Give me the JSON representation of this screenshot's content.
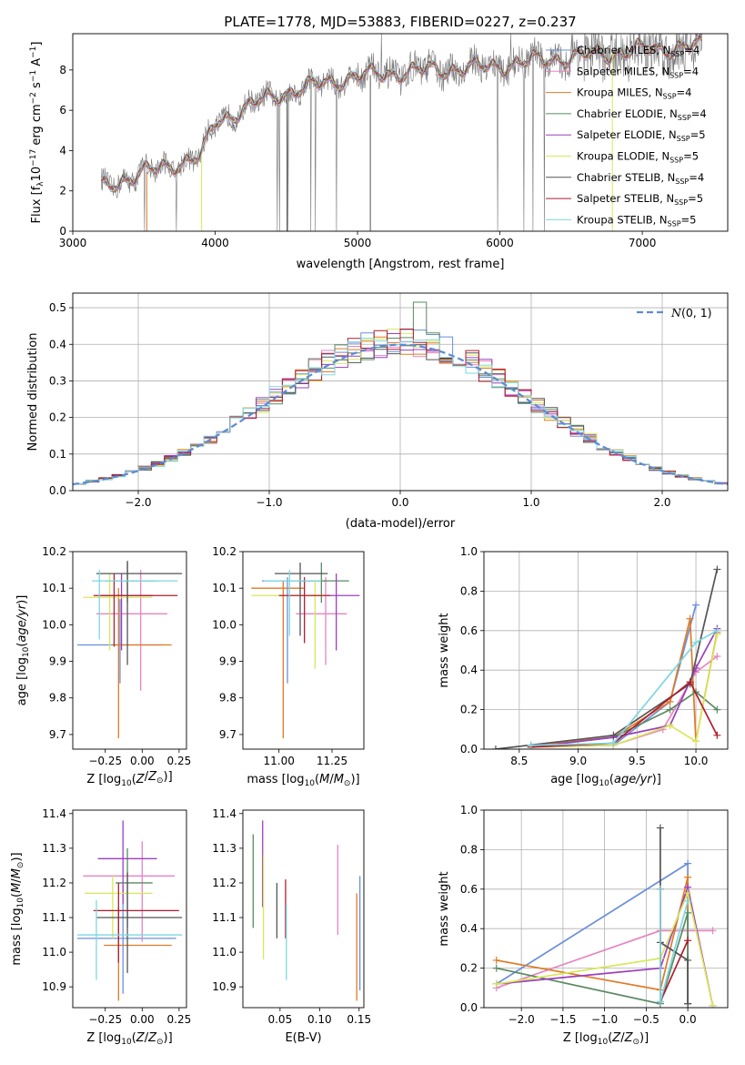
{
  "title": "PLATE=1778, MJD=53883, FIBERID=0227, z=0.237",
  "colors": {
    "Chabrier MILES": "#6a8fdc",
    "Salpeter MILES": "#e585c0",
    "Kroupa MILES": "#e07a26",
    "Chabrier ELODIE": "#5a8a62",
    "Salpeter ELODIE": "#9b3fbd",
    "Kroupa ELODIE": "#d8e85a",
    "Chabrier STELIB": "#555555",
    "Salpeter STELIB": "#b01c2e",
    "Kroupa STELIB": "#7fd6e0"
  },
  "chart_data": [
    {
      "id": "spectrum",
      "type": "line",
      "xlabel": "wavelength [Angstrom, rest frame]",
      "ylabel": "Flux [f",
      "xlim": [
        3000,
        7600
      ],
      "ylim": [
        0,
        9.8
      ],
      "xticks": [
        3000,
        4000,
        5000,
        6000,
        7000
      ],
      "yticks": [
        0,
        2,
        4,
        6,
        8
      ],
      "legend": "upper-right",
      "series": [
        {
          "name": "Chabrier MILES, N",
          "nssp": "=4"
        },
        {
          "name": "Salpeter MILES, N",
          "nssp": "=4"
        },
        {
          "name": "Kroupa MILES, N",
          "nssp": "=4"
        },
        {
          "name": "Chabrier ELODIE, N",
          "nssp": "=4"
        },
        {
          "name": "Salpeter ELODIE, N",
          "nssp": "=5"
        },
        {
          "name": "Kroupa ELODIE, N",
          "nssp": "=5"
        },
        {
          "name": "Chabrier STELIB, N",
          "nssp": "=4"
        },
        {
          "name": "Salpeter STELIB, N",
          "nssp": "=5"
        },
        {
          "name": "Kroupa STELIB, N",
          "nssp": "=5"
        }
      ],
      "continuum": {
        "x": [
          3200,
          3500,
          3900,
          4000,
          4300,
          4500,
          4800,
          5000,
          5200,
          5500,
          5800,
          6000,
          6300,
          6600,
          7000,
          7400
        ],
        "y": [
          2.2,
          2.9,
          3.7,
          5.4,
          6.4,
          6.9,
          7.4,
          7.7,
          7.8,
          8.0,
          8.1,
          8.2,
          8.5,
          8.7,
          9.0,
          9.2
        ]
      }
    },
    {
      "id": "residuals",
      "type": "histogram",
      "xlabel": "(data-model)/error",
      "ylabel": "Normed distribution",
      "xlim": [
        -2.5,
        2.5
      ],
      "ylim": [
        0,
        0.54
      ],
      "xticks": [
        -2,
        -1,
        0,
        1,
        2
      ],
      "yticks": [
        0.0,
        0.1,
        0.2,
        0.3,
        0.4,
        0.5
      ],
      "legend": "upper-right",
      "gauss_label": "(0, 1)",
      "bin_width": 0.1
    },
    {
      "id": "age-vs-Z",
      "type": "scatter",
      "xlabel": "Z [log",
      "ylabel": "age  [log",
      "xlim": [
        -0.47,
        0.3
      ],
      "ylim": [
        9.66,
        10.2
      ],
      "xticks": [
        -0.25,
        0.0,
        0.25
      ],
      "yticks": [
        9.7,
        9.8,
        9.9,
        10.0,
        10.1,
        10.2
      ],
      "points": [
        {
          "model": "Chabrier MILES",
          "x": -0.15,
          "xlo": -0.44,
          "xhi": 0.14,
          "y": 9.945,
          "ylo": 9.84,
          "yhi": 10.07
        },
        {
          "model": "Salpeter MILES",
          "x": -0.01,
          "xlo": -0.31,
          "xhi": 0.17,
          "y": 10.03,
          "ylo": 9.82,
          "yhi": 10.15
        },
        {
          "model": "Kroupa MILES",
          "x": -0.16,
          "xlo": -0.2,
          "xhi": 0.2,
          "y": 9.945,
          "ylo": 9.69,
          "yhi": 10.1
        },
        {
          "model": "Chabrier ELODIE",
          "x": -0.1,
          "xlo": -0.25,
          "xhi": 0.1,
          "y": 10.12,
          "ylo": 10.06,
          "yhi": 10.17
        },
        {
          "model": "Salpeter ELODIE",
          "x": -0.14,
          "xlo": -0.28,
          "xhi": 0.07,
          "y": 10.08,
          "ylo": 9.93,
          "yhi": 10.14
        },
        {
          "model": "Kroupa ELODIE",
          "x": -0.22,
          "xlo": -0.4,
          "xhi": 0.07,
          "y": 10.075,
          "ylo": 9.93,
          "yhi": 10.14
        },
        {
          "model": "Chabrier STELIB",
          "x": -0.1,
          "xlo": -0.31,
          "xhi": 0.27,
          "y": 10.14,
          "ylo": 9.89,
          "yhi": 10.175
        },
        {
          "model": "Salpeter STELIB",
          "x": -0.19,
          "xlo": -0.33,
          "xhi": 0.24,
          "y": 10.08,
          "ylo": 9.94,
          "yhi": 10.14
        },
        {
          "model": "Kroupa STELIB",
          "x": -0.29,
          "xlo": -0.34,
          "xhi": 0.24,
          "y": 10.12,
          "ylo": 9.96,
          "yhi": 10.15
        }
      ]
    },
    {
      "id": "age-vs-mass",
      "type": "scatter",
      "xlabel": "mass [log",
      "ylabel": "",
      "xlim": [
        10.83,
        11.4
      ],
      "ylim": [
        9.66,
        10.2
      ],
      "xticks": [
        11.0,
        11.25
      ],
      "yticks": [
        9.7,
        9.8,
        9.9,
        10.0,
        10.1,
        10.2
      ],
      "points": [
        {
          "model": "Chabrier MILES",
          "x": 11.04,
          "xlo": 10.92,
          "xhi": 11.23,
          "y": 10.12,
          "ylo": 9.84,
          "yhi": 10.13
        },
        {
          "model": "Salpeter MILES",
          "x": 11.22,
          "xlo": 11.08,
          "xhi": 11.32,
          "y": 10.03,
          "ylo": 9.89,
          "yhi": 10.13
        },
        {
          "model": "Kroupa MILES",
          "x": 11.02,
          "xlo": 10.87,
          "xhi": 11.12,
          "y": 10.1,
          "ylo": 9.69,
          "yhi": 10.12
        },
        {
          "model": "Chabrier ELODIE",
          "x": 11.2,
          "xlo": 11.1,
          "xhi": 11.33,
          "y": 10.12,
          "ylo": 10.06,
          "yhi": 10.17
        },
        {
          "model": "Salpeter ELODIE",
          "x": 11.27,
          "xlo": 11.14,
          "xhi": 11.38,
          "y": 10.08,
          "ylo": 9.93,
          "yhi": 10.14
        },
        {
          "model": "Kroupa ELODIE",
          "x": 11.17,
          "xlo": 10.87,
          "xhi": 11.23,
          "y": 10.08,
          "ylo": 9.88,
          "yhi": 10.12
        },
        {
          "model": "Chabrier STELIB",
          "x": 11.1,
          "xlo": 10.98,
          "xhi": 11.23,
          "y": 10.14,
          "ylo": 9.97,
          "yhi": 10.17
        },
        {
          "model": "Salpeter STELIB",
          "x": 11.12,
          "xlo": 11.0,
          "xhi": 11.24,
          "y": 10.08,
          "ylo": 9.95,
          "yhi": 10.13
        },
        {
          "model": "Kroupa STELIB",
          "x": 11.05,
          "xlo": 10.93,
          "xhi": 11.2,
          "y": 10.12,
          "ylo": 9.97,
          "yhi": 10.15
        }
      ]
    },
    {
      "id": "mass-weight-vs-age",
      "type": "line",
      "xlabel": "age  [log",
      "ylabel": "mass weight",
      "xlim": [
        8.2,
        10.27
      ],
      "ylim": [
        0,
        1.0
      ],
      "xticks": [
        8.5,
        9.0,
        9.5,
        10.0
      ],
      "yticks": [
        0.0,
        0.2,
        0.4,
        0.6,
        0.8,
        1.0
      ],
      "grid": true,
      "series": [
        {
          "name": "Chabrier MILES",
          "x": [
            8.6,
            9.3,
            9.78,
            10.0
          ],
          "y": [
            0.01,
            0.02,
            0.24,
            0.73
          ]
        },
        {
          "name": "Salpeter MILES",
          "x": [
            8.6,
            9.3,
            9.72,
            10.0,
            10.18
          ],
          "y": [
            0.01,
            0.02,
            0.1,
            0.39,
            0.47
          ]
        },
        {
          "name": "Kroupa MILES",
          "x": [
            8.6,
            9.3,
            9.78,
            9.95,
            10.0,
            10.18
          ],
          "y": [
            0.02,
            0.06,
            0.24,
            0.66,
            0.04,
            0.59
          ]
        },
        {
          "name": "Chabrier ELODIE",
          "x": [
            8.6,
            9.3,
            9.78,
            10.0,
            10.18
          ],
          "y": [
            0.01,
            0.06,
            0.2,
            0.29,
            0.2
          ]
        },
        {
          "name": "Salpeter ELODIE",
          "x": [
            8.6,
            9.3,
            9.78,
            10.0,
            10.18
          ],
          "y": [
            0.01,
            0.06,
            0.12,
            0.41,
            0.61
          ]
        },
        {
          "name": "Kroupa ELODIE",
          "x": [
            8.6,
            9.3,
            9.78,
            10.0,
            10.18
          ],
          "y": [
            0.01,
            0.02,
            0.12,
            0.04,
            0.58
          ]
        },
        {
          "name": "Chabrier STELIB",
          "x": [
            8.3,
            9.3,
            9.95,
            10.18
          ],
          "y": [
            0.0,
            0.07,
            0.33,
            0.91
          ]
        },
        {
          "name": "Salpeter STELIB",
          "x": [
            8.6,
            9.3,
            9.95,
            10.18
          ],
          "y": [
            0.01,
            0.03,
            0.34,
            0.07
          ]
        },
        {
          "name": "Kroupa STELIB",
          "x": [
            8.6,
            9.3,
            10.0,
            10.18
          ],
          "y": [
            0.02,
            0.03,
            0.54,
            0.6
          ]
        }
      ]
    },
    {
      "id": "mass-vs-Z",
      "type": "scatter",
      "xlabel": "Z [log",
      "ylabel": "mass [log",
      "xlim": [
        -0.47,
        0.3
      ],
      "ylim": [
        10.84,
        11.41
      ],
      "xticks": [
        -0.25,
        0.0,
        0.25
      ],
      "yticks": [
        10.9,
        11.0,
        11.1,
        11.2,
        11.3,
        11.4
      ],
      "points": [
        {
          "model": "Chabrier MILES",
          "x": -0.13,
          "xlo": -0.44,
          "xhi": 0.23,
          "y": 11.04,
          "ylo": 10.88,
          "yhi": 11.19
        },
        {
          "model": "Salpeter MILES",
          "x": 0.0,
          "xlo": -0.4,
          "xhi": 0.22,
          "y": 11.22,
          "ylo": 11.03,
          "yhi": 11.32
        },
        {
          "model": "Kroupa MILES",
          "x": -0.16,
          "xlo": -0.26,
          "xhi": 0.2,
          "y": 11.02,
          "ylo": 10.86,
          "yhi": 11.13
        },
        {
          "model": "Chabrier ELODIE",
          "x": -0.1,
          "xlo": -0.18,
          "xhi": 0.07,
          "y": 11.2,
          "ylo": 11.07,
          "yhi": 11.3
        },
        {
          "model": "Salpeter ELODIE",
          "x": -0.13,
          "xlo": -0.3,
          "xhi": 0.1,
          "y": 11.27,
          "ylo": 11.14,
          "yhi": 11.38
        },
        {
          "model": "Kroupa ELODIE",
          "x": -0.2,
          "xlo": -0.39,
          "xhi": 0.07,
          "y": 11.17,
          "ylo": 11.04,
          "yhi": 11.22
        },
        {
          "model": "Chabrier STELIB",
          "x": -0.1,
          "xlo": -0.31,
          "xhi": 0.27,
          "y": 11.1,
          "ylo": 10.94,
          "yhi": 11.23
        },
        {
          "model": "Salpeter STELIB",
          "x": -0.16,
          "xlo": -0.33,
          "xhi": 0.25,
          "y": 11.12,
          "ylo": 10.97,
          "yhi": 11.2
        },
        {
          "model": "Kroupa STELIB",
          "x": -0.31,
          "xlo": -0.44,
          "xhi": 0.27,
          "y": 11.05,
          "ylo": 10.92,
          "yhi": 11.15
        }
      ]
    },
    {
      "id": "mass-vs-EBV",
      "type": "scatter",
      "xlabel": "E(B-V)",
      "ylabel": "",
      "xlim": [
        0.003,
        0.156
      ],
      "ylim": [
        10.84,
        11.41
      ],
      "xticks": [
        0.05,
        0.1,
        0.15
      ],
      "yticks": [
        10.9,
        11.0,
        11.1,
        11.2,
        11.3,
        11.4
      ],
      "points": [
        {
          "model": "Chabrier MILES",
          "x": 0.151,
          "y": 11.04,
          "ylo": 10.89,
          "yhi": 11.22
        },
        {
          "model": "Salpeter MILES",
          "x": 0.123,
          "y": 11.22,
          "ylo": 11.05,
          "yhi": 11.31
        },
        {
          "model": "Kroupa MILES",
          "x": 0.147,
          "y": 11.02,
          "ylo": 10.86,
          "yhi": 11.17
        },
        {
          "model": "Chabrier ELODIE",
          "x": 0.016,
          "y": 11.2,
          "ylo": 11.07,
          "yhi": 11.34
        },
        {
          "model": "Salpeter ELODIE",
          "x": 0.028,
          "y": 11.27,
          "ylo": 11.13,
          "yhi": 11.38
        },
        {
          "model": "Kroupa ELODIE",
          "x": 0.029,
          "y": 11.17,
          "ylo": 10.98,
          "yhi": 11.28
        },
        {
          "model": "Chabrier STELIB",
          "x": 0.046,
          "y": 11.1,
          "ylo": 11.04,
          "yhi": 11.2
        },
        {
          "model": "Salpeter STELIB",
          "x": 0.057,
          "y": 11.12,
          "ylo": 11.04,
          "yhi": 11.21
        },
        {
          "model": "Kroupa STELIB",
          "x": 0.058,
          "y": 11.05,
          "ylo": 10.92,
          "yhi": 11.14
        }
      ]
    },
    {
      "id": "mass-weight-vs-Z",
      "type": "line",
      "xlabel": "Z [log",
      "ylabel": "mass weight",
      "xlim": [
        -2.45,
        0.48
      ],
      "ylim": [
        0,
        1.0
      ],
      "xticks": [
        -2.0,
        -1.5,
        -1.0,
        -0.5,
        0.0
      ],
      "yticks": [
        0.0,
        0.2,
        0.4,
        0.6,
        0.8,
        1.0
      ],
      "grid": true,
      "series": [
        {
          "name": "Chabrier MILES",
          "x": [
            -2.3,
            0.0,
            0.0
          ],
          "y": [
            0.12,
            0.73,
            0.02
          ]
        },
        {
          "name": "Salpeter MILES",
          "x": [
            -2.3,
            -0.33,
            0.0,
            0.3
          ],
          "y": [
            0.1,
            0.39,
            0.39,
            0.39
          ]
        },
        {
          "name": "Kroupa MILES",
          "x": [
            -2.3,
            -0.33,
            0.0,
            0.0
          ],
          "y": [
            0.24,
            0.09,
            0.66,
            0.02
          ]
        },
        {
          "name": "Chabrier ELODIE",
          "x": [
            -2.3,
            -0.33,
            0.0,
            0.0
          ],
          "y": [
            0.2,
            0.02,
            0.48,
            0.02
          ]
        },
        {
          "name": "Salpeter ELODIE",
          "x": [
            -2.3,
            -0.33,
            0.0,
            0.3
          ],
          "y": [
            0.12,
            0.2,
            0.61,
            0.01
          ]
        },
        {
          "name": "Kroupa ELODIE",
          "x": [
            -2.3,
            -0.33,
            0.0,
            0.3
          ],
          "y": [
            0.12,
            0.25,
            0.58,
            0.01
          ]
        },
        {
          "name": "Chabrier STELIB",
          "x": [
            -0.33,
            -0.33,
            0.0,
            0.0
          ],
          "y": [
            0.91,
            0.33,
            0.24,
            0.02
          ]
        },
        {
          "name": "Salpeter STELIB",
          "x": [
            -0.33,
            -0.33,
            0.0
          ],
          "y": [
            0.6,
            0.03,
            0.34
          ]
        },
        {
          "name": "Kroupa STELIB",
          "x": [
            -0.33,
            -0.33,
            0.0
          ],
          "y": [
            0.6,
            0.03,
            0.54
          ]
        }
      ]
    }
  ]
}
